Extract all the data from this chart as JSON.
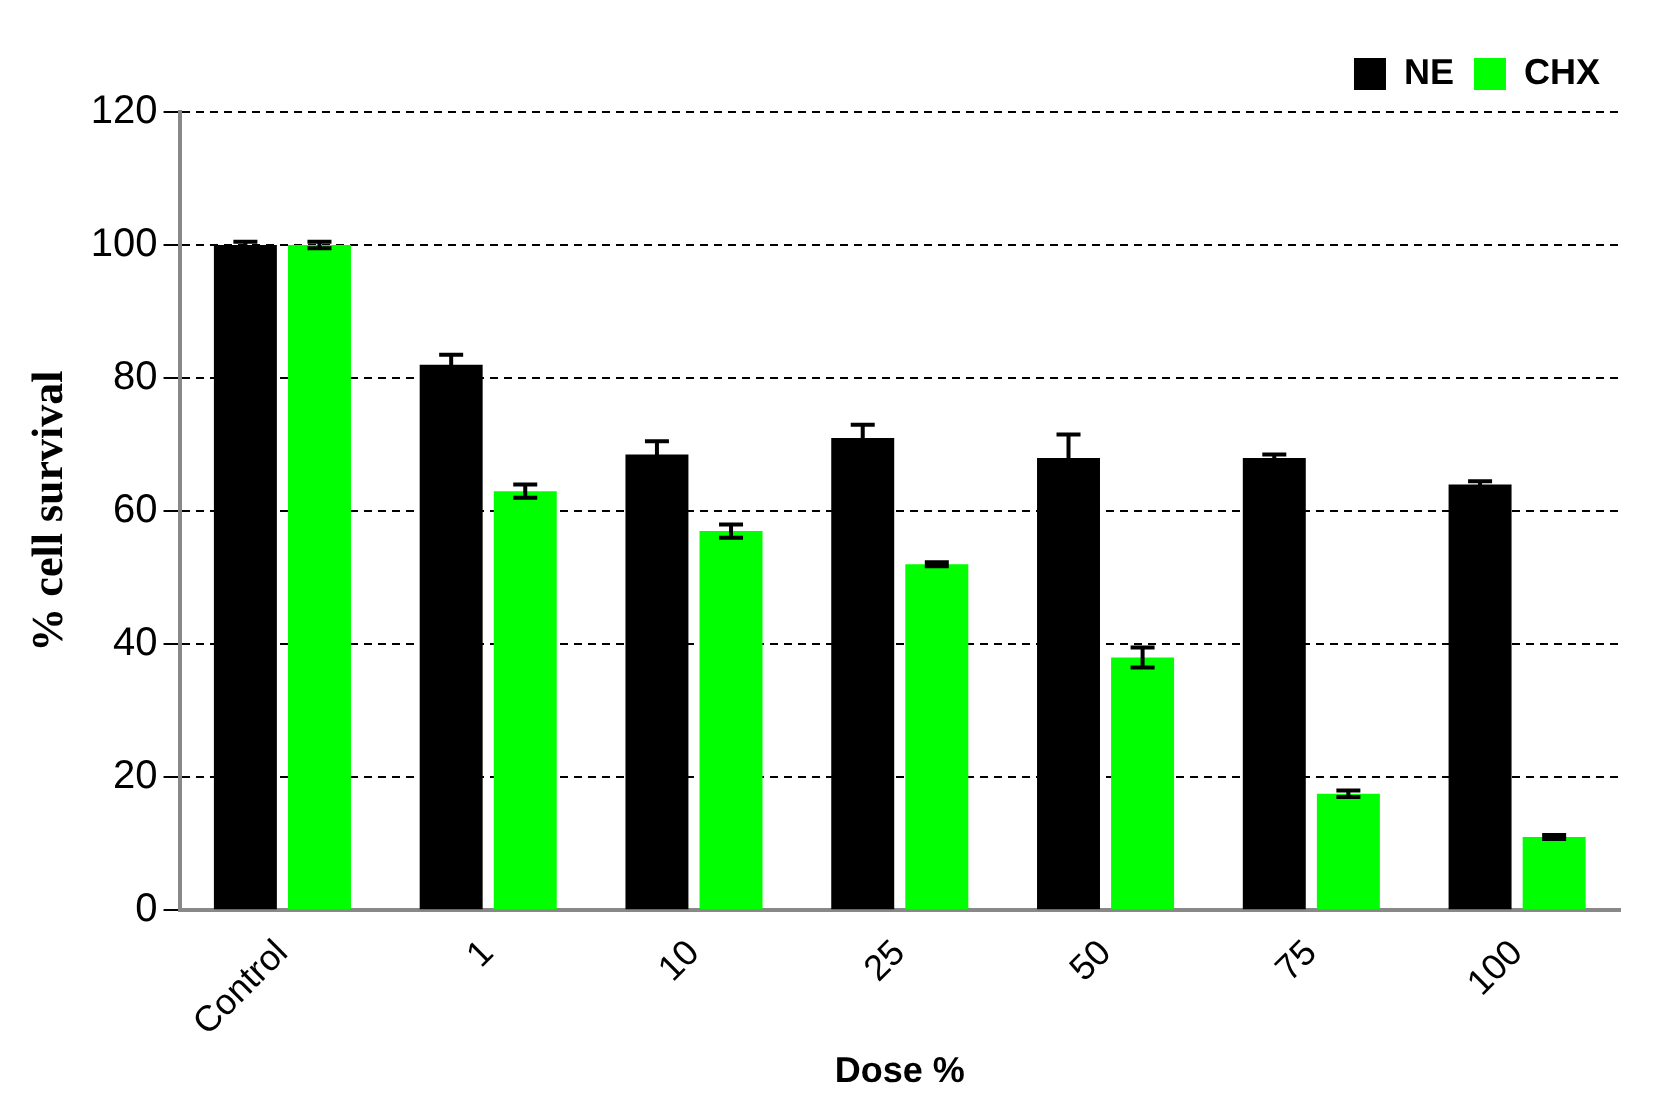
{
  "chart_data": {
    "type": "bar",
    "xlabel": "Dose %",
    "ylabel": "% cell survival",
    "categories": [
      "Control",
      "1",
      "10",
      "25",
      "50",
      "75",
      "100"
    ],
    "series": [
      {
        "name": "NE",
        "color": "#000000",
        "values": [
          100,
          82,
          68.5,
          71,
          68,
          68,
          64
        ],
        "errors": [
          0.5,
          1.5,
          2,
          2,
          3.5,
          0.5,
          0.5
        ]
      },
      {
        "name": "CHX",
        "color": "#00ff00",
        "values": [
          100,
          63,
          57,
          52,
          38,
          17.5,
          11
        ],
        "errors": [
          0.5,
          1,
          1,
          0.3,
          1.5,
          0.5,
          0.3
        ]
      }
    ],
    "ylim": [
      0,
      120
    ],
    "yticks": [
      0,
      20,
      40,
      60,
      80,
      100,
      120
    ],
    "grid": "y",
    "legend": "top right"
  }
}
